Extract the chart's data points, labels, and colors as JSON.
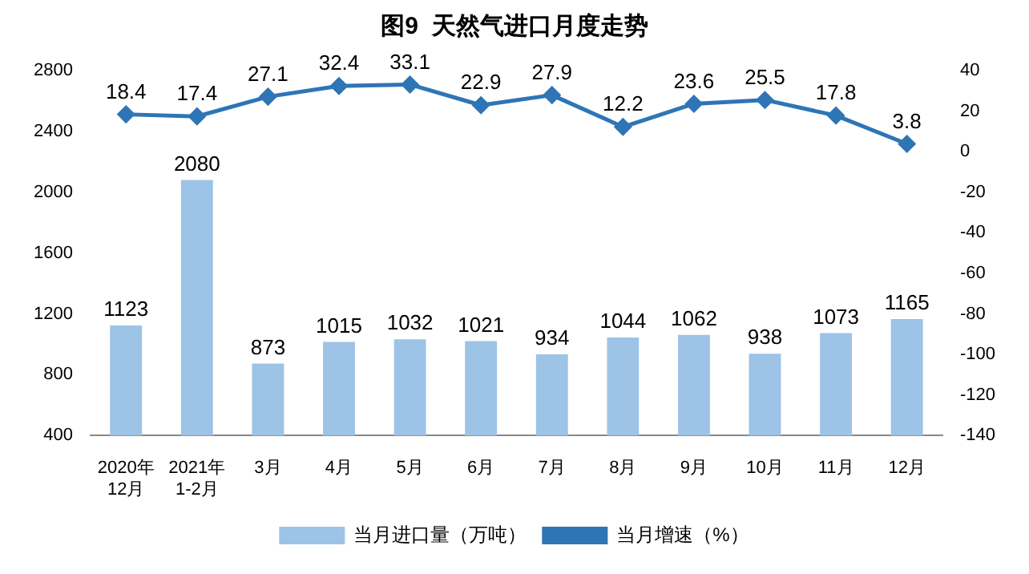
{
  "chart_data": {
    "type": "bar",
    "title": "图9  天然气进口月度走势",
    "categories": [
      "2020年\n12月",
      "2021年\n1-2月",
      "3月",
      "4月",
      "5月",
      "6月",
      "7月",
      "8月",
      "9月",
      "10月",
      "11月",
      "12月"
    ],
    "series": [
      {
        "name": "当月进口量（万吨）",
        "color": "#9dc3e6",
        "values": [
          1123,
          2080,
          873,
          1015,
          1032,
          1021,
          934,
          1044,
          1062,
          938,
          1073,
          1165
        ]
      },
      {
        "name": "当月增速（%）",
        "type": "line",
        "axis": "y2",
        "color": "#2e75b6",
        "values": [
          18.4,
          17.4,
          27.1,
          32.4,
          33.1,
          22.9,
          27.9,
          12.2,
          23.6,
          25.5,
          17.8,
          3.8
        ]
      }
    ],
    "ylim": [
      400,
      2800
    ],
    "yticks": [
      400,
      800,
      1200,
      1600,
      2000,
      2400,
      2800
    ],
    "y2lim": [
      -140,
      40
    ],
    "y2ticks": [
      -140,
      -120,
      -100,
      -80,
      -60,
      -40,
      -20,
      0,
      20,
      40
    ],
    "grid": false,
    "legend": "bottom",
    "marker": "diamond",
    "line_style": "solid",
    "data_labels": true
  }
}
